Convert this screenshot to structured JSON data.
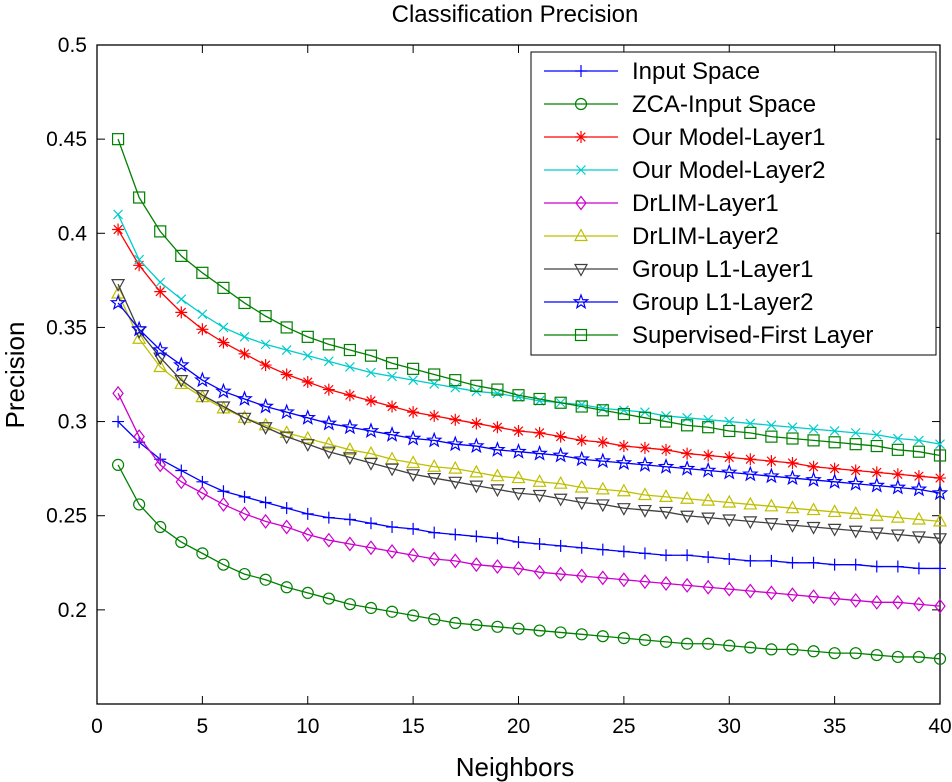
{
  "chart_data": {
    "type": "line",
    "title": "Classification Precision",
    "xlabel": "Neighbors",
    "ylabel": "Precision",
    "xlim": [
      0,
      40
    ],
    "ylim": [
      0.15,
      0.5
    ],
    "xticks": [
      0,
      5,
      10,
      15,
      20,
      25,
      30,
      35,
      40
    ],
    "yticks": [
      0.2,
      0.25,
      0.3,
      0.35,
      0.4,
      0.45,
      0.5
    ],
    "xtick_labels": [
      "0",
      "5",
      "10",
      "15",
      "20",
      "25",
      "30",
      "35",
      "40"
    ],
    "ytick_labels": [
      "0.2",
      "0.25",
      "0.3",
      "0.35",
      "0.4",
      "0.45",
      "0.5"
    ],
    "grid": false,
    "legend_position": "top-right",
    "x": [
      1,
      2,
      3,
      4,
      5,
      6,
      7,
      8,
      9,
      10,
      11,
      12,
      13,
      14,
      15,
      16,
      17,
      18,
      19,
      20,
      21,
      22,
      23,
      24,
      25,
      26,
      27,
      28,
      29,
      30,
      31,
      32,
      33,
      34,
      35,
      36,
      37,
      38,
      39,
      40
    ],
    "series": [
      {
        "name": "Input Space",
        "color": "#0000ff",
        "marker": "plus",
        "values": [
          0.3,
          0.289,
          0.28,
          0.274,
          0.268,
          0.263,
          0.26,
          0.257,
          0.254,
          0.251,
          0.249,
          0.248,
          0.246,
          0.244,
          0.243,
          0.241,
          0.24,
          0.239,
          0.238,
          0.236,
          0.235,
          0.234,
          0.233,
          0.232,
          0.231,
          0.23,
          0.229,
          0.229,
          0.228,
          0.227,
          0.226,
          0.226,
          0.225,
          0.225,
          0.224,
          0.224,
          0.223,
          0.223,
          0.222,
          0.222
        ]
      },
      {
        "name": "ZCA-Input Space",
        "color": "#008000",
        "marker": "circle",
        "values": [
          0.277,
          0.256,
          0.244,
          0.236,
          0.23,
          0.224,
          0.219,
          0.216,
          0.212,
          0.209,
          0.206,
          0.203,
          0.201,
          0.199,
          0.197,
          0.195,
          0.193,
          0.192,
          0.191,
          0.19,
          0.189,
          0.188,
          0.187,
          0.186,
          0.185,
          0.184,
          0.183,
          0.182,
          0.182,
          0.181,
          0.18,
          0.179,
          0.179,
          0.178,
          0.177,
          0.177,
          0.176,
          0.175,
          0.175,
          0.174
        ]
      },
      {
        "name": "Our Model-Layer1",
        "color": "#ff0000",
        "marker": "asterisk",
        "values": [
          0.402,
          0.383,
          0.369,
          0.358,
          0.349,
          0.342,
          0.336,
          0.33,
          0.325,
          0.321,
          0.317,
          0.314,
          0.311,
          0.308,
          0.305,
          0.303,
          0.301,
          0.299,
          0.297,
          0.295,
          0.294,
          0.292,
          0.29,
          0.289,
          0.287,
          0.286,
          0.285,
          0.283,
          0.282,
          0.281,
          0.28,
          0.279,
          0.278,
          0.276,
          0.275,
          0.274,
          0.273,
          0.272,
          0.271,
          0.27
        ]
      },
      {
        "name": "Our Model-Layer2",
        "color": "#00cccc",
        "marker": "cross",
        "values": [
          0.41,
          0.386,
          0.374,
          0.365,
          0.357,
          0.35,
          0.345,
          0.341,
          0.338,
          0.335,
          0.332,
          0.329,
          0.326,
          0.324,
          0.322,
          0.32,
          0.318,
          0.316,
          0.315,
          0.313,
          0.311,
          0.31,
          0.309,
          0.307,
          0.306,
          0.305,
          0.303,
          0.302,
          0.301,
          0.3,
          0.299,
          0.298,
          0.297,
          0.296,
          0.295,
          0.294,
          0.293,
          0.291,
          0.29,
          0.288
        ]
      },
      {
        "name": "DrLIM-Layer1",
        "color": "#cc00cc",
        "marker": "diamond",
        "values": [
          0.315,
          0.292,
          0.277,
          0.268,
          0.262,
          0.256,
          0.251,
          0.247,
          0.244,
          0.24,
          0.237,
          0.235,
          0.233,
          0.231,
          0.229,
          0.227,
          0.226,
          0.224,
          0.223,
          0.222,
          0.22,
          0.219,
          0.218,
          0.217,
          0.216,
          0.215,
          0.214,
          0.213,
          0.212,
          0.211,
          0.21,
          0.209,
          0.208,
          0.207,
          0.206,
          0.205,
          0.204,
          0.204,
          0.203,
          0.202
        ]
      },
      {
        "name": "DrLIM-Layer2",
        "color": "#bfbf00",
        "marker": "triangle-up",
        "values": [
          0.368,
          0.344,
          0.329,
          0.32,
          0.313,
          0.307,
          0.302,
          0.298,
          0.294,
          0.291,
          0.288,
          0.285,
          0.283,
          0.28,
          0.278,
          0.276,
          0.275,
          0.273,
          0.271,
          0.27,
          0.268,
          0.267,
          0.265,
          0.264,
          0.263,
          0.261,
          0.26,
          0.259,
          0.258,
          0.257,
          0.256,
          0.255,
          0.254,
          0.253,
          0.252,
          0.251,
          0.25,
          0.249,
          0.248,
          0.247
        ]
      },
      {
        "name": "Group L1-Layer1",
        "color": "#404040",
        "marker": "triangle-down",
        "values": [
          0.373,
          0.348,
          0.334,
          0.322,
          0.314,
          0.308,
          0.302,
          0.297,
          0.292,
          0.288,
          0.284,
          0.281,
          0.278,
          0.275,
          0.272,
          0.27,
          0.268,
          0.266,
          0.264,
          0.262,
          0.261,
          0.259,
          0.257,
          0.256,
          0.254,
          0.253,
          0.252,
          0.25,
          0.249,
          0.248,
          0.247,
          0.246,
          0.245,
          0.244,
          0.243,
          0.242,
          0.241,
          0.24,
          0.239,
          0.238
        ]
      },
      {
        "name": "Group L1-Layer2",
        "color": "#0000ff",
        "marker": "pentagram",
        "values": [
          0.363,
          0.349,
          0.338,
          0.33,
          0.322,
          0.316,
          0.312,
          0.308,
          0.305,
          0.302,
          0.299,
          0.297,
          0.295,
          0.293,
          0.291,
          0.29,
          0.288,
          0.287,
          0.285,
          0.284,
          0.283,
          0.282,
          0.28,
          0.279,
          0.278,
          0.277,
          0.276,
          0.275,
          0.274,
          0.273,
          0.272,
          0.271,
          0.27,
          0.269,
          0.268,
          0.267,
          0.266,
          0.265,
          0.264,
          0.262
        ]
      },
      {
        "name": "Supervised-First Layer",
        "color": "#008000",
        "marker": "square",
        "values": [
          0.45,
          0.419,
          0.401,
          0.388,
          0.379,
          0.371,
          0.363,
          0.356,
          0.35,
          0.345,
          0.341,
          0.338,
          0.335,
          0.331,
          0.328,
          0.325,
          0.322,
          0.319,
          0.317,
          0.314,
          0.312,
          0.31,
          0.308,
          0.306,
          0.304,
          0.302,
          0.3,
          0.298,
          0.297,
          0.295,
          0.294,
          0.292,
          0.291,
          0.29,
          0.289,
          0.288,
          0.287,
          0.285,
          0.284,
          0.282
        ]
      }
    ]
  }
}
